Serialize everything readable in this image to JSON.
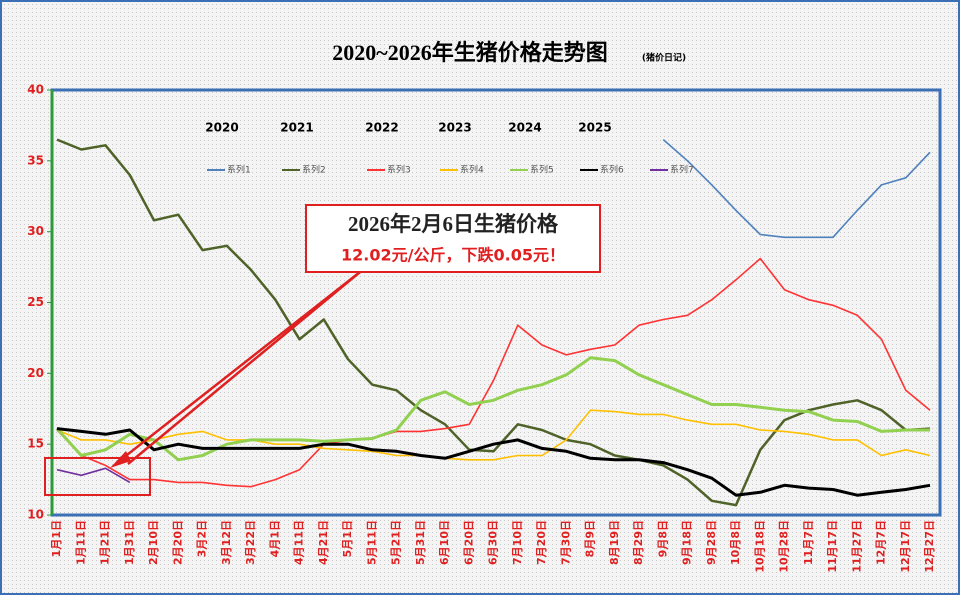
{
  "chart_data": {
    "type": "line",
    "title": "2020~2026年生猪价格走势图",
    "subtitle": "(猪价日记)",
    "year_labels": [
      "2020",
      "2021",
      "2022",
      "2023",
      "2024",
      "2025"
    ],
    "annotations": [
      "2026年2月6日生猪价格",
      "12.02元/公斤，下跌0.05元！"
    ],
    "categories": [
      "1月1日",
      "1月11日",
      "1月21日",
      "1月31日",
      "2月10日",
      "2月20日",
      "3月2日",
      "3月12日",
      "3月22日",
      "4月1日",
      "4月11日",
      "4月21日",
      "5月1日",
      "5月11日",
      "5月21日",
      "5月31日",
      "6月10日",
      "6月20日",
      "6月30日",
      "7月10日",
      "7月20日",
      "7月30日",
      "8月9日",
      "8月19日",
      "8月29日",
      "9月8日",
      "9月18日",
      "9月28日",
      "10月8日",
      "10月18日",
      "10月28日",
      "11月7日",
      "11月17日",
      "11月27日",
      "12月7日",
      "12月17日",
      "12月27日"
    ],
    "ylim": [
      10,
      40
    ],
    "yticks": [
      10,
      15,
      20,
      25,
      30,
      35,
      40
    ],
    "series": [
      {
        "name": "系列1",
        "color": "#4f81bd",
        "values": [
          null,
          null,
          null,
          null,
          null,
          null,
          null,
          null,
          null,
          null,
          null,
          null,
          null,
          null,
          null,
          null,
          null,
          null,
          null,
          null,
          null,
          null,
          null,
          null,
          null,
          36.5,
          35,
          33.3,
          31.5,
          29.8,
          29.6,
          29.6,
          29.6,
          31.5,
          33.3,
          33.8,
          35.6
        ]
      },
      {
        "name": "系列2",
        "color": "#4f6228",
        "values": [
          36.5,
          35.8,
          36.1,
          34,
          30.8,
          31.2,
          28.7,
          29,
          27.3,
          25.2,
          22.4,
          23.8,
          21,
          19.2,
          18.8,
          17.4,
          16.4,
          14.6,
          14.5,
          16.4,
          16,
          15.3,
          15,
          14.2,
          13.9,
          13.5,
          12.5,
          11,
          10.7,
          14.6,
          16.7,
          17.4,
          17.8,
          18.1,
          17.4,
          16,
          16.1
        ]
      },
      {
        "name": "系列3",
        "color": "#ff3333",
        "values": [
          16,
          14.2,
          13.5,
          12.5,
          12.5,
          12.3,
          12.3,
          12.1,
          12,
          12.5,
          13.2,
          15,
          15.3,
          15.4,
          15.9,
          15.9,
          16.1,
          16.4,
          19.5,
          23.4,
          22,
          21.3,
          21.7,
          22,
          23.4,
          23.8,
          24.1,
          25.2,
          26.6,
          28.1,
          25.9,
          25.2,
          24.8,
          24.1,
          22.4,
          18.8,
          17.4
        ]
      },
      {
        "name": "系列4",
        "color": "#ffc000",
        "values": [
          16,
          15.3,
          15.3,
          15,
          15.3,
          15.7,
          15.9,
          15.3,
          15.3,
          15,
          15,
          14.7,
          14.6,
          14.5,
          14.2,
          14.2,
          14,
          13.9,
          13.9,
          14.2,
          14.2,
          15.3,
          17.4,
          17.3,
          17.1,
          17.1,
          16.7,
          16.4,
          16.4,
          16,
          15.9,
          15.7,
          15.3,
          15.3,
          14.2,
          14.6,
          14.2
        ]
      },
      {
        "name": "系列5",
        "color": "#92d050",
        "values": [
          16.1,
          14.2,
          14.6,
          15.7,
          15.3,
          13.9,
          14.2,
          15,
          15.3,
          15.3,
          15.3,
          15.2,
          15.3,
          15.4,
          16,
          18.1,
          18.7,
          17.8,
          18.1,
          18.8,
          19.2,
          19.9,
          21.1,
          20.9,
          19.9,
          19.2,
          18.5,
          17.8,
          17.8,
          17.6,
          17.4,
          17.3,
          16.7,
          16.6,
          15.9,
          16,
          16
        ]
      },
      {
        "name": "系列6",
        "color": "#000000",
        "values": [
          16.1,
          15.9,
          15.7,
          16,
          14.6,
          15,
          14.7,
          14.7,
          14.7,
          14.7,
          14.7,
          15,
          15,
          14.6,
          14.5,
          14.2,
          14,
          14.5,
          15,
          15.3,
          14.7,
          14.5,
          14,
          13.9,
          13.9,
          13.7,
          13.2,
          12.6,
          11.4,
          11.6,
          12.1,
          11.9,
          11.8,
          11.4,
          11.6,
          11.8,
          12.1
        ]
      },
      {
        "name": "系列7",
        "color": "#7030a0",
        "values": [
          13.2,
          12.8,
          13.3,
          12.3,
          null,
          null,
          null,
          null,
          null,
          null,
          null,
          null,
          null,
          null,
          null,
          null,
          null,
          null,
          null,
          null,
          null,
          null,
          null,
          null,
          null,
          null,
          null,
          null,
          null,
          null,
          null,
          null,
          null,
          null,
          null,
          null,
          null
        ]
      }
    ]
  }
}
